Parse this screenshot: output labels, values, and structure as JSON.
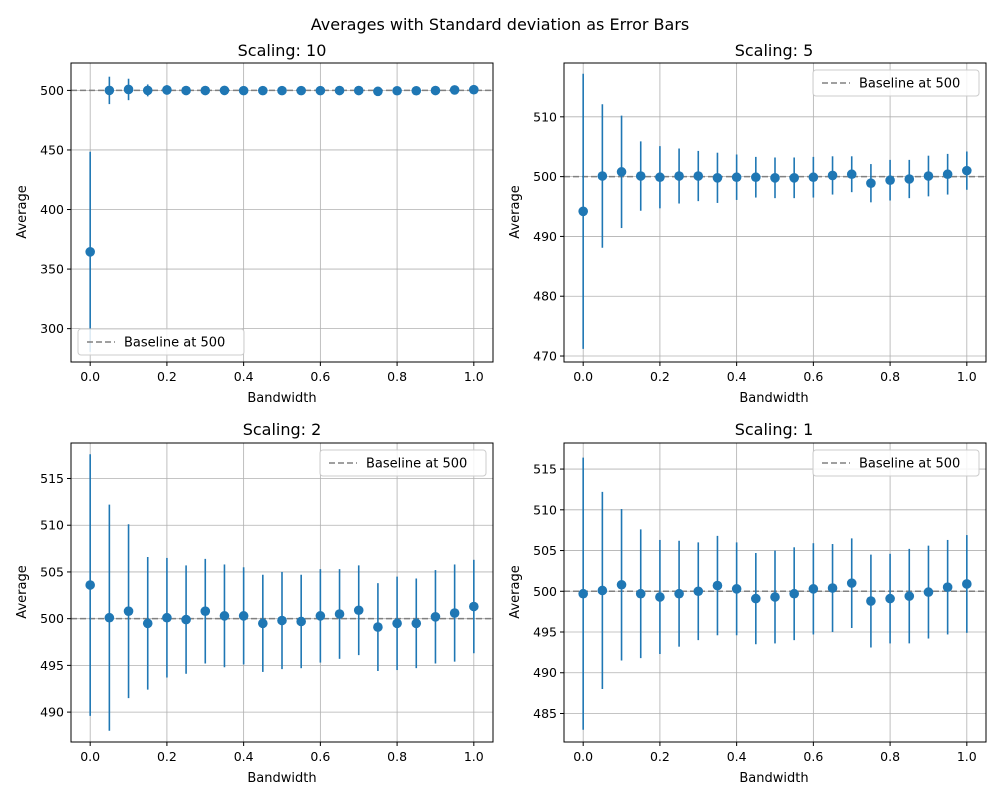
{
  "figure": {
    "suptitle": "Averages with Standard deviation as Error Bars"
  },
  "colors": {
    "marker": "#1f77b4",
    "errorbar": "#1f77b4",
    "baseline": "#808080",
    "grid": "#b0b0b0"
  },
  "chart_data": [
    {
      "type": "scatter",
      "title": "Scaling: 10",
      "xlabel": "Bandwidth",
      "ylabel": "Average",
      "xlim": [
        -0.05,
        1.05
      ],
      "ylim": [
        272,
        523
      ],
      "xticks": [
        0.0,
        0.2,
        0.4,
        0.6,
        0.8,
        1.0
      ],
      "xtick_labels": [
        "0.0",
        "0.2",
        "0.4",
        "0.6",
        "0.8",
        "1.0"
      ],
      "yticks": [
        300,
        350,
        400,
        450,
        500
      ],
      "ytick_labels": [
        "300",
        "350",
        "400",
        "450",
        "500"
      ],
      "grid": true,
      "legend": {
        "position": "lower-left",
        "label": "Baseline at 500"
      },
      "baseline": 500,
      "x": [
        0.0,
        0.05,
        0.1,
        0.15,
        0.2,
        0.25,
        0.3,
        0.35,
        0.4,
        0.45,
        0.5,
        0.55,
        0.6,
        0.65,
        0.7,
        0.75,
        0.8,
        0.85,
        0.9,
        0.95,
        1.0
      ],
      "y": [
        364.5,
        500.0,
        500.8,
        500.0,
        500.4,
        499.9,
        499.9,
        500.0,
        499.8,
        499.8,
        499.8,
        499.8,
        499.8,
        499.9,
        499.9,
        499.2,
        499.7,
        499.7,
        499.9,
        500.4,
        500.6
      ],
      "yerr": [
        84,
        11.5,
        9,
        5,
        4,
        3,
        3,
        3,
        3,
        3,
        3,
        3,
        3,
        3,
        3,
        3,
        3,
        3,
        3,
        3,
        3
      ]
    },
    {
      "type": "scatter",
      "title": "Scaling: 5",
      "xlabel": "Bandwidth",
      "ylabel": "Average",
      "xlim": [
        -0.05,
        1.05
      ],
      "ylim": [
        469,
        519
      ],
      "xticks": [
        0.0,
        0.2,
        0.4,
        0.6,
        0.8,
        1.0
      ],
      "xtick_labels": [
        "0.0",
        "0.2",
        "0.4",
        "0.6",
        "0.8",
        "1.0"
      ],
      "yticks": [
        470,
        480,
        490,
        500,
        510
      ],
      "ytick_labels": [
        "470",
        "480",
        "490",
        "500",
        "510"
      ],
      "grid": true,
      "legend": {
        "position": "upper-right",
        "label": "Baseline at 500"
      },
      "baseline": 500,
      "x": [
        0.0,
        0.05,
        0.1,
        0.15,
        0.2,
        0.25,
        0.3,
        0.35,
        0.4,
        0.45,
        0.5,
        0.55,
        0.6,
        0.65,
        0.7,
        0.75,
        0.8,
        0.85,
        0.9,
        0.95,
        1.0
      ],
      "y": [
        494.2,
        500.1,
        500.8,
        500.1,
        499.9,
        500.1,
        500.1,
        499.8,
        499.9,
        499.9,
        499.8,
        499.8,
        499.9,
        500.2,
        500.4,
        498.9,
        499.4,
        499.6,
        500.1,
        500.4,
        501.0
      ],
      "yerr": [
        23,
        12,
        9.4,
        5.8,
        5.2,
        4.6,
        4.2,
        4.2,
        3.8,
        3.4,
        3.4,
        3.4,
        3.4,
        3.2,
        3.0,
        3.2,
        3.4,
        3.2,
        3.4,
        3.4,
        3.2
      ]
    },
    {
      "type": "scatter",
      "title": "Scaling: 2",
      "xlabel": "Bandwidth",
      "ylabel": "Average",
      "xlim": [
        -0.05,
        1.05
      ],
      "ylim": [
        486.8,
        518.8
      ],
      "xticks": [
        0.0,
        0.2,
        0.4,
        0.6,
        0.8,
        1.0
      ],
      "xtick_labels": [
        "0.0",
        "0.2",
        "0.4",
        "0.6",
        "0.8",
        "1.0"
      ],
      "yticks": [
        490,
        495,
        500,
        505,
        510,
        515
      ],
      "ytick_labels": [
        "490",
        "495",
        "500",
        "505",
        "510",
        "515"
      ],
      "grid": true,
      "legend": {
        "position": "upper-right",
        "label": "Baseline at 500"
      },
      "baseline": 500,
      "x": [
        0.0,
        0.05,
        0.1,
        0.15,
        0.2,
        0.25,
        0.3,
        0.35,
        0.4,
        0.45,
        0.5,
        0.55,
        0.6,
        0.65,
        0.7,
        0.75,
        0.8,
        0.85,
        0.9,
        0.95,
        1.0
      ],
      "y": [
        503.6,
        500.1,
        500.8,
        499.5,
        500.1,
        499.9,
        500.8,
        500.3,
        500.3,
        499.5,
        499.8,
        499.7,
        500.3,
        500.5,
        500.9,
        499.1,
        499.5,
        499.5,
        500.2,
        500.6,
        501.3
      ],
      "yerr": [
        14,
        12.1,
        9.3,
        7.1,
        6.4,
        5.8,
        5.6,
        5.5,
        5.2,
        5.2,
        5.2,
        5.0,
        5.0,
        4.8,
        4.8,
        4.7,
        5.0,
        4.8,
        5.0,
        5.2,
        5.0
      ]
    },
    {
      "type": "scatter",
      "title": "Scaling: 1",
      "xlabel": "Bandwidth",
      "ylabel": "Average",
      "xlim": [
        -0.05,
        1.05
      ],
      "ylim": [
        481.5,
        518.2
      ],
      "xticks": [
        0.0,
        0.2,
        0.4,
        0.6,
        0.8,
        1.0
      ],
      "xtick_labels": [
        "0.0",
        "0.2",
        "0.4",
        "0.6",
        "0.8",
        "1.0"
      ],
      "yticks": [
        485,
        490,
        495,
        500,
        505,
        510,
        515
      ],
      "ytick_labels": [
        "485",
        "490",
        "495",
        "500",
        "505",
        "510",
        "515"
      ],
      "grid": true,
      "legend": {
        "position": "upper-right",
        "label": "Baseline at 500"
      },
      "baseline": 500,
      "x": [
        0.0,
        0.05,
        0.1,
        0.15,
        0.2,
        0.25,
        0.3,
        0.35,
        0.4,
        0.45,
        0.5,
        0.55,
        0.6,
        0.65,
        0.7,
        0.75,
        0.8,
        0.85,
        0.9,
        0.95,
        1.0
      ],
      "y": [
        499.7,
        500.1,
        500.8,
        499.7,
        499.3,
        499.7,
        500.0,
        500.7,
        500.3,
        499.1,
        499.3,
        499.7,
        500.3,
        500.4,
        501.0,
        498.8,
        499.1,
        499.4,
        499.9,
        500.5,
        500.9
      ],
      "yerr": [
        16.7,
        12.1,
        9.3,
        7.9,
        7.0,
        6.5,
        6.0,
        6.1,
        5.7,
        5.6,
        5.7,
        5.7,
        5.6,
        5.4,
        5.5,
        5.7,
        5.5,
        5.8,
        5.7,
        5.8,
        6.0
      ]
    }
  ]
}
